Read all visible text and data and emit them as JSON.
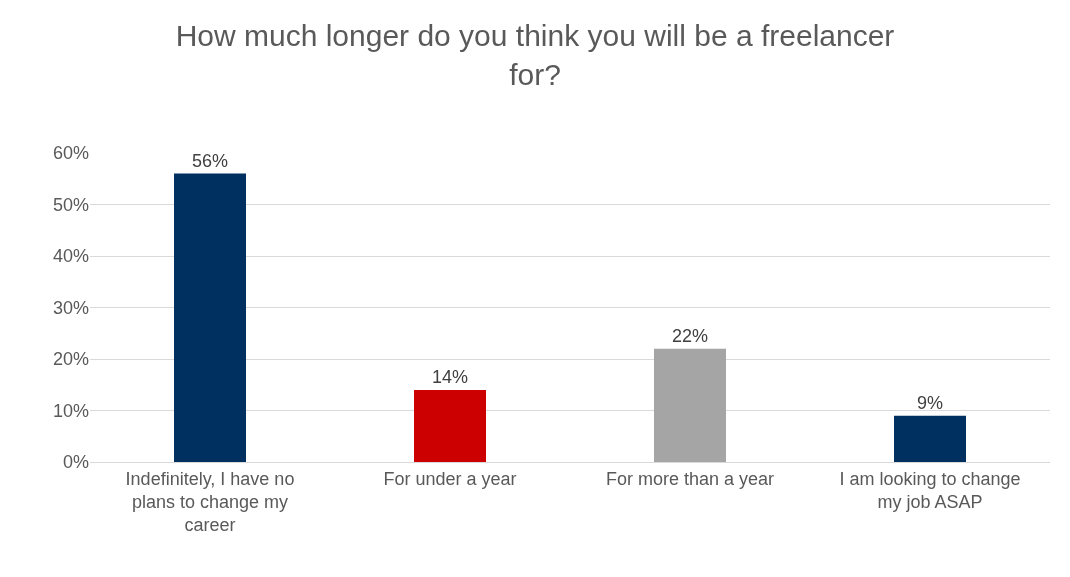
{
  "chart_data": {
    "type": "bar",
    "title": "How much longer do you think you will be a freelancer for?",
    "categories": [
      "Indefinitely, I have no plans to change my career",
      "For under a year",
      "For more than a year",
      "I am looking to change my job ASAP"
    ],
    "values": [
      56,
      14,
      22,
      9
    ],
    "value_labels": [
      "56%",
      "14%",
      "22%",
      "9%"
    ],
    "colors": [
      "#003060",
      "#cc0000",
      "#a5a5a5",
      "#003060"
    ],
    "ylim": [
      0,
      60
    ],
    "yticks": [
      {
        "value": 0,
        "label": "0%"
      },
      {
        "value": 10,
        "label": "10%"
      },
      {
        "value": 20,
        "label": "20%"
      },
      {
        "value": 30,
        "label": "30%"
      },
      {
        "value": 40,
        "label": "40%"
      },
      {
        "value": 50,
        "label": "50%"
      },
      {
        "value": 60,
        "label": "60%"
      }
    ],
    "grid": "y"
  }
}
